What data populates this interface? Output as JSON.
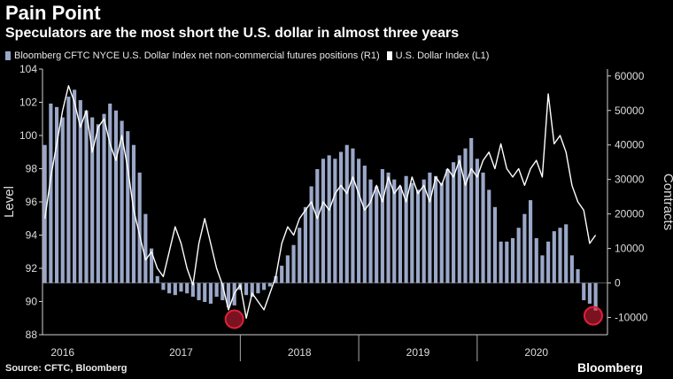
{
  "header": {
    "title": "Pain Point",
    "subtitle": "Speculators are the most short the U.S. dollar in almost three years"
  },
  "legend": {
    "bars_label": "Bloomberg CFTC NYCE U.S. Dollar Index net non-commercial futures positions (R1)",
    "line_label": "U.S. Dollar Index (L1)"
  },
  "footer": {
    "source": "Source: CFTC, Bloomberg",
    "brand": "Bloomberg"
  },
  "colors": {
    "background": "#000000",
    "bars": "#9aa7c7",
    "line": "#ffffff",
    "highlight_circle": "#e0203a"
  },
  "chart_data": {
    "type": "bar+line",
    "title": "Pain Point",
    "subtitle": "Speculators are the most short the U.S. dollar in almost three years",
    "left_axis": {
      "label": "Level",
      "min": 88,
      "max": 104,
      "ticks": [
        88,
        90,
        92,
        94,
        96,
        98,
        100,
        102,
        104
      ]
    },
    "right_axis": {
      "label": "Contracts",
      "min": -15000,
      "max": 62000,
      "ticks": [
        -10000,
        0,
        10000,
        20000,
        30000,
        40000,
        50000,
        60000
      ]
    },
    "x_axis": {
      "min": 2015.83,
      "max": 2020.6,
      "labels": [
        "2016",
        "2017",
        "2018",
        "2019",
        "2020"
      ],
      "label_pos": [
        2016.0,
        2017.0,
        2018.0,
        2019.0,
        2020.0
      ],
      "dividers": [
        2017.5,
        2018.5,
        2019.5
      ]
    },
    "bars_series": {
      "name": "Bloomberg CFTC NYCE U.S. Dollar Index net non-commercial futures positions (R1)",
      "axis": "right",
      "x": [
        2015.85,
        2015.9,
        2015.95,
        2016.0,
        2016.05,
        2016.1,
        2016.15,
        2016.2,
        2016.25,
        2016.3,
        2016.35,
        2016.4,
        2016.45,
        2016.5,
        2016.55,
        2016.6,
        2016.65,
        2016.7,
        2016.75,
        2016.8,
        2016.85,
        2016.9,
        2016.95,
        2017.0,
        2017.05,
        2017.1,
        2017.15,
        2017.2,
        2017.25,
        2017.3,
        2017.35,
        2017.4,
        2017.45,
        2017.5,
        2017.55,
        2017.6,
        2017.65,
        2017.7,
        2017.75,
        2017.8,
        2017.85,
        2017.9,
        2017.95,
        2018.0,
        2018.05,
        2018.1,
        2018.15,
        2018.2,
        2018.25,
        2018.3,
        2018.35,
        2018.4,
        2018.45,
        2018.5,
        2018.55,
        2018.6,
        2018.65,
        2018.7,
        2018.75,
        2018.8,
        2018.85,
        2018.9,
        2018.95,
        2019.0,
        2019.05,
        2019.1,
        2019.15,
        2019.2,
        2019.25,
        2019.3,
        2019.35,
        2019.4,
        2019.45,
        2019.5,
        2019.55,
        2019.6,
        2019.65,
        2019.7,
        2019.75,
        2019.8,
        2019.85,
        2019.9,
        2019.95,
        2020.0,
        2020.05,
        2020.1,
        2020.15,
        2020.2,
        2020.25,
        2020.3,
        2020.35,
        2020.4,
        2020.45,
        2020.5
      ],
      "values": [
        40000,
        52000,
        51000,
        48000,
        54000,
        56000,
        53000,
        50000,
        48000,
        46000,
        49000,
        52000,
        50000,
        47000,
        44000,
        40000,
        32000,
        20000,
        10000,
        2000,
        -2000,
        -3000,
        -3500,
        -2500,
        -3000,
        -4000,
        -5000,
        -5500,
        -6000,
        -4000,
        -5000,
        -7000,
        -6500,
        -2000,
        -3500,
        -4000,
        -3000,
        -2000,
        -1000,
        2000,
        5000,
        8000,
        11000,
        16000,
        22000,
        28000,
        33000,
        36000,
        37000,
        36000,
        38000,
        40000,
        39000,
        36000,
        34000,
        30000,
        28000,
        33000,
        32000,
        30000,
        28000,
        31000,
        29000,
        27000,
        30000,
        32000,
        31000,
        29000,
        33000,
        35000,
        37000,
        39000,
        42000,
        36000,
        32000,
        27000,
        22000,
        12000,
        12000,
        13000,
        16000,
        20000,
        24000,
        13000,
        8000,
        12000,
        15000,
        16000,
        17000,
        8000,
        4000,
        -5000,
        -6000,
        -8000
      ]
    },
    "line_series": {
      "name": "U.S. Dollar Index (L1)",
      "axis": "left",
      "x": [
        2015.85,
        2015.9,
        2015.95,
        2016.0,
        2016.05,
        2016.1,
        2016.15,
        2016.2,
        2016.25,
        2016.3,
        2016.35,
        2016.4,
        2016.45,
        2016.5,
        2016.55,
        2016.6,
        2016.65,
        2016.7,
        2016.75,
        2016.8,
        2016.85,
        2016.9,
        2016.95,
        2017.0,
        2017.05,
        2017.1,
        2017.15,
        2017.2,
        2017.25,
        2017.3,
        2017.35,
        2017.4,
        2017.45,
        2017.5,
        2017.55,
        2017.6,
        2017.65,
        2017.7,
        2017.75,
        2017.8,
        2017.85,
        2017.9,
        2017.95,
        2018.0,
        2018.05,
        2018.1,
        2018.15,
        2018.2,
        2018.25,
        2018.3,
        2018.35,
        2018.4,
        2018.45,
        2018.5,
        2018.55,
        2018.6,
        2018.65,
        2018.7,
        2018.75,
        2018.8,
        2018.85,
        2018.9,
        2018.95,
        2019.0,
        2019.05,
        2019.1,
        2019.15,
        2019.2,
        2019.25,
        2019.3,
        2019.35,
        2019.4,
        2019.45,
        2019.5,
        2019.55,
        2019.6,
        2019.65,
        2019.7,
        2019.75,
        2019.8,
        2019.85,
        2019.9,
        2019.95,
        2020.0,
        2020.05,
        2020.1,
        2020.15,
        2020.2,
        2020.25,
        2020.3,
        2020.35,
        2020.4,
        2020.45,
        2020.5
      ],
      "values": [
        95.0,
        97.5,
        99.5,
        101.5,
        103.0,
        102.0,
        100.5,
        101.5,
        99.0,
        100.5,
        101.0,
        99.5,
        98.5,
        100.0,
        98.0,
        95.5,
        94.0,
        92.5,
        93.0,
        92.0,
        91.5,
        93.0,
        94.5,
        93.5,
        92.0,
        91.0,
        93.5,
        95.0,
        93.5,
        92.0,
        91.0,
        89.5,
        90.5,
        91.0,
        89.0,
        90.5,
        90.0,
        89.5,
        90.5,
        91.5,
        93.5,
        94.5,
        94.0,
        95.0,
        95.5,
        96.0,
        95.0,
        96.0,
        95.5,
        96.5,
        97.0,
        96.5,
        97.5,
        96.5,
        95.5,
        96.0,
        97.0,
        96.0,
        97.5,
        96.5,
        97.0,
        96.0,
        97.5,
        96.5,
        97.0,
        96.0,
        97.5,
        97.0,
        98.0,
        97.5,
        98.5,
        97.0,
        98.0,
        97.5,
        98.5,
        99.0,
        98.0,
        99.5,
        98.0,
        97.5,
        98.0,
        97.0,
        98.0,
        98.5,
        97.5,
        102.5,
        99.5,
        100.0,
        99.0,
        97.0,
        96.0,
        95.5,
        93.5,
        94.0
      ]
    },
    "annotations": [
      {
        "type": "circle",
        "x": 2017.45,
        "y_right": -10500,
        "note": "prior short extreme"
      },
      {
        "type": "circle",
        "x": 2020.48,
        "y_right": -9500,
        "note": "current short extreme"
      }
    ]
  }
}
